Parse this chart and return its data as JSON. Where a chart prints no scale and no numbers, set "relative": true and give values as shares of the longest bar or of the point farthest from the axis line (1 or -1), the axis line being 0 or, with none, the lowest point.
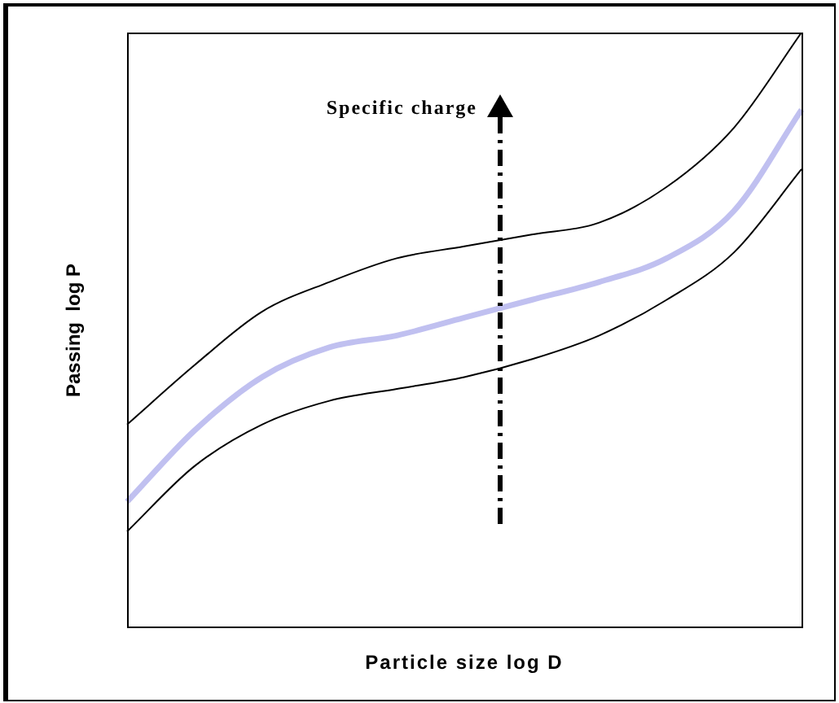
{
  "chart_data": {
    "type": "line",
    "relative": true,
    "xlabel": "Particle size log D",
    "ylabel": "Passing  log P",
    "annotations": [
      "Specific charge"
    ],
    "marker": "none",
    "categories": [
      null,
      null,
      null,
      null,
      null,
      null,
      null,
      null,
      null,
      null,
      null
    ],
    "series": [
      {
        "color": "#000000",
        "values": [
          0.34,
          0.44,
          0.53,
          0.58,
          0.62,
          0.64,
          0.66,
          0.68,
          0.74,
          0.84,
          1.0
        ]
      },
      {
        "color": "#c0c0f0",
        "values": [
          0.21,
          0.33,
          0.42,
          0.47,
          0.49,
          0.52,
          0.55,
          0.58,
          0.62,
          0.7,
          0.87
        ]
      },
      {
        "color": "#000000",
        "values": [
          0.16,
          0.27,
          0.34,
          0.38,
          0.4,
          0.42,
          0.45,
          0.49,
          0.55,
          0.63,
          0.77
        ]
      }
    ]
  }
}
